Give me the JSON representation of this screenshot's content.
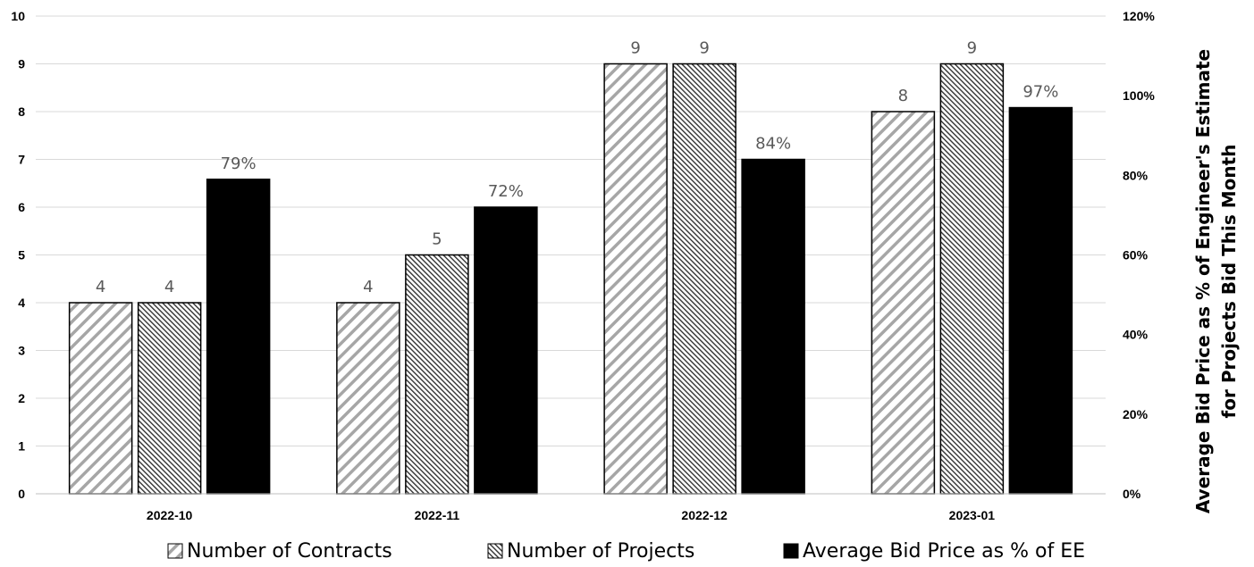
{
  "chart_data": {
    "type": "bar",
    "categories": [
      "2022-10",
      "2022-11",
      "2022-12",
      "2023-01"
    ],
    "series": [
      {
        "name": "Number of Contracts",
        "axis": "left",
        "values": [
          4,
          4,
          9,
          8
        ],
        "labels": [
          "4",
          "4",
          "9",
          "8"
        ],
        "pattern": "diagonal-stripes-light"
      },
      {
        "name": "Number of Projects",
        "axis": "left",
        "values": [
          4,
          5,
          9,
          9
        ],
        "labels": [
          "4",
          "5",
          "9",
          "9"
        ],
        "pattern": "diagonal-stripes-dense"
      },
      {
        "name": "Average Bid Price as % of EE",
        "axis": "right",
        "values": [
          0.79,
          0.72,
          0.84,
          0.97
        ],
        "labels": [
          "79%",
          "72%",
          "84%",
          "97%"
        ],
        "color": "#000000"
      }
    ],
    "y_left": {
      "min": 0,
      "max": 10,
      "ticks": [
        "0",
        "1",
        "2",
        "3",
        "4",
        "5",
        "6",
        "7",
        "8",
        "9",
        "10"
      ]
    },
    "y_right": {
      "min": 0,
      "max": 1.2,
      "ticks": [
        "0%",
        "20%",
        "40%",
        "60%",
        "80%",
        "100%",
        "120%"
      ],
      "label_line1": "Average Bid Price as % of Engineer's Estimate",
      "label_line2": "for Projects Bid This Month"
    },
    "grid": true,
    "grid_color": "#d9d9d9",
    "legend_position": "bottom"
  }
}
